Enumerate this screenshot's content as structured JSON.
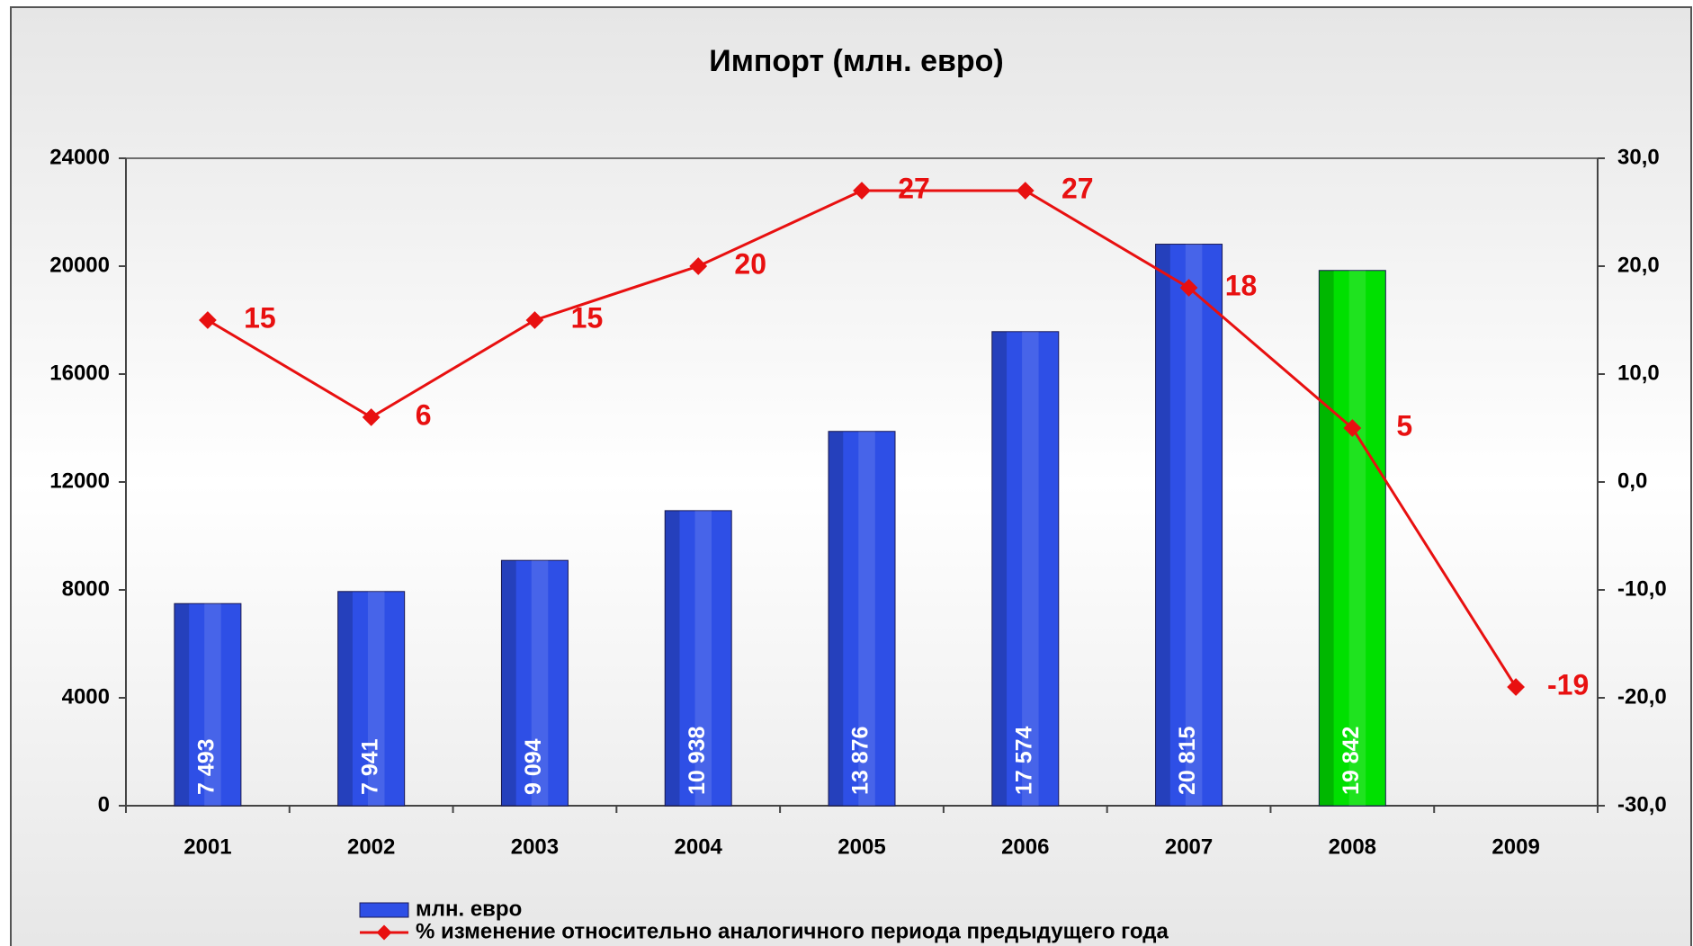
{
  "chart_data": {
    "type": "bar",
    "title": "Импорт (млн. евро)",
    "categories": [
      "2001",
      "2002",
      "2003",
      "2004",
      "2005",
      "2006",
      "2007",
      "2008",
      "2009"
    ],
    "series": [
      {
        "name": "млн. евро",
        "type": "bar",
        "color": "#2e4fe6",
        "colors": [
          "#2e4fe6",
          "#2e4fe6",
          "#2e4fe6",
          "#2e4fe6",
          "#2e4fe6",
          "#2e4fe6",
          "#2e4fe6",
          "#00e000",
          "#2e4fe6"
        ],
        "values": [
          7493,
          7941,
          9094,
          10938,
          13876,
          17574,
          20815,
          19842,
          null
        ],
        "value_labels": [
          "7 493",
          "7 941",
          "9 094",
          "10 938",
          "13 876",
          "17 574",
          "20 815",
          "19 842",
          null
        ]
      },
      {
        "name": "% изменение относительно аналогичного периода предыдущего года",
        "type": "line",
        "color": "#e81010",
        "axis": "y2",
        "values": [
          15,
          6,
          15,
          20,
          27,
          27,
          18,
          5,
          -19
        ]
      }
    ],
    "ylim": [
      0,
      24000
    ],
    "yticks": [
      0,
      4000,
      8000,
      12000,
      16000,
      20000,
      24000
    ],
    "y2lim": [
      -30,
      30
    ],
    "y2ticks": [
      {
        "value": -30,
        "label": "-30,0"
      },
      {
        "value": -20,
        "label": "-20,0"
      },
      {
        "value": -10,
        "label": "-10,0"
      },
      {
        "value": 0,
        "label": "0,0"
      },
      {
        "value": 10,
        "label": "10,0"
      },
      {
        "value": 20,
        "label": "20,0"
      },
      {
        "value": 30,
        "label": "30,0"
      }
    ],
    "grid": false
  }
}
